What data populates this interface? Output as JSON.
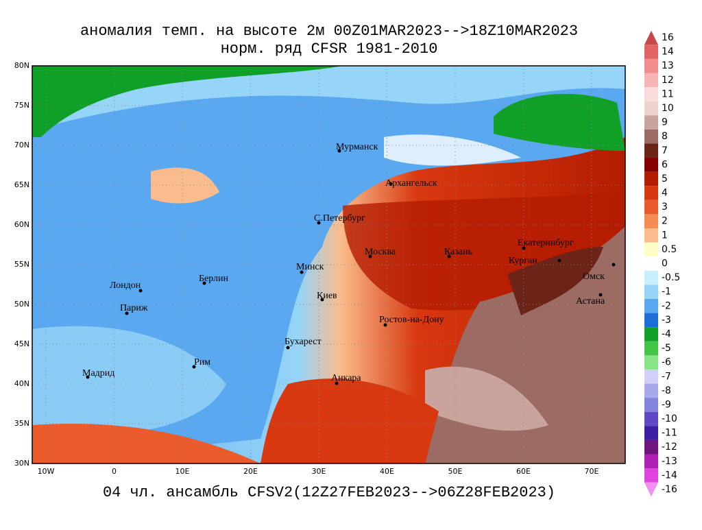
{
  "header": {
    "title": "аномалия темп. на высоте 2м 00Z01MAR2023-->18Z10MAR2023",
    "subtitle": "норм. ряд CFSR 1981-2010",
    "footer": "04 чл. ансамбль CFSV2(12Z27FEB2023-->06Z28FEB2023)"
  },
  "map": {
    "lat_labels": [
      "80N",
      "75N",
      "70N",
      "65N",
      "60N",
      "55N",
      "50N",
      "45N",
      "40N",
      "35N",
      "30N"
    ],
    "lon_labels": [
      "10W",
      "0",
      "10E",
      "20E",
      "30E",
      "40E",
      "50E",
      "60E",
      "70E"
    ],
    "cities": [
      "Мурманск",
      "Архангельск",
      "С.Петербург",
      "Москва",
      "Казань",
      "Екатеринбург",
      "Курган",
      "Омск",
      "Астана",
      "Минск",
      "Берлин",
      "Лондон",
      "Париж",
      "Киев",
      "Ростов-на-Дону",
      "Бухарест",
      "Рим",
      "Мадрид",
      "Анкара"
    ]
  },
  "colorbar": [
    {
      "label": "16",
      "color": "#c84848"
    },
    {
      "label": "14",
      "color": "#e06464"
    },
    {
      "label": "13",
      "color": "#f08c8c"
    },
    {
      "label": "12",
      "color": "#f6b4b4"
    },
    {
      "label": "11",
      "color": "#fadcdc"
    },
    {
      "label": "10",
      "color": "#ecd4cc"
    },
    {
      "label": "9",
      "color": "#c8a49c"
    },
    {
      "label": "8",
      "color": "#9c6c64"
    },
    {
      "label": "7",
      "color": "#6c2418"
    },
    {
      "label": "6",
      "color": "#840000"
    },
    {
      "label": "5",
      "color": "#b41c00"
    },
    {
      "label": "4",
      "color": "#d83810"
    },
    {
      "label": "3",
      "color": "#ea5c2c"
    },
    {
      "label": "2",
      "color": "#f48c54"
    },
    {
      "label": "1",
      "color": "#fabc8c"
    },
    {
      "label": "0.5",
      "color": "#ffffc8"
    },
    {
      "label": "0",
      "color": "#ffffff"
    },
    {
      "label": "-0.5",
      "color": "#c8f0fc"
    },
    {
      "label": "-1",
      "color": "#96d4f8"
    },
    {
      "label": "-2",
      "color": "#5aa8f0"
    },
    {
      "label": "-3",
      "color": "#1e6ed8"
    },
    {
      "label": "-4",
      "color": "#10a028"
    },
    {
      "label": "-5",
      "color": "#44c444"
    },
    {
      "label": "-6",
      "color": "#88e488"
    },
    {
      "label": "-7",
      "color": "#d0d0f8"
    },
    {
      "label": "-8",
      "color": "#a8a8ec"
    },
    {
      "label": "-9",
      "color": "#8484dc"
    },
    {
      "label": "-10",
      "color": "#6048c4"
    },
    {
      "label": "-11",
      "color": "#3c1ca0"
    },
    {
      "label": "-12",
      "color": "#701480"
    },
    {
      "label": "-13",
      "color": "#b020b4"
    },
    {
      "label": "-14",
      "color": "#e044e0"
    },
    {
      "label": "-16",
      "color": "#f490f4"
    }
  ]
}
